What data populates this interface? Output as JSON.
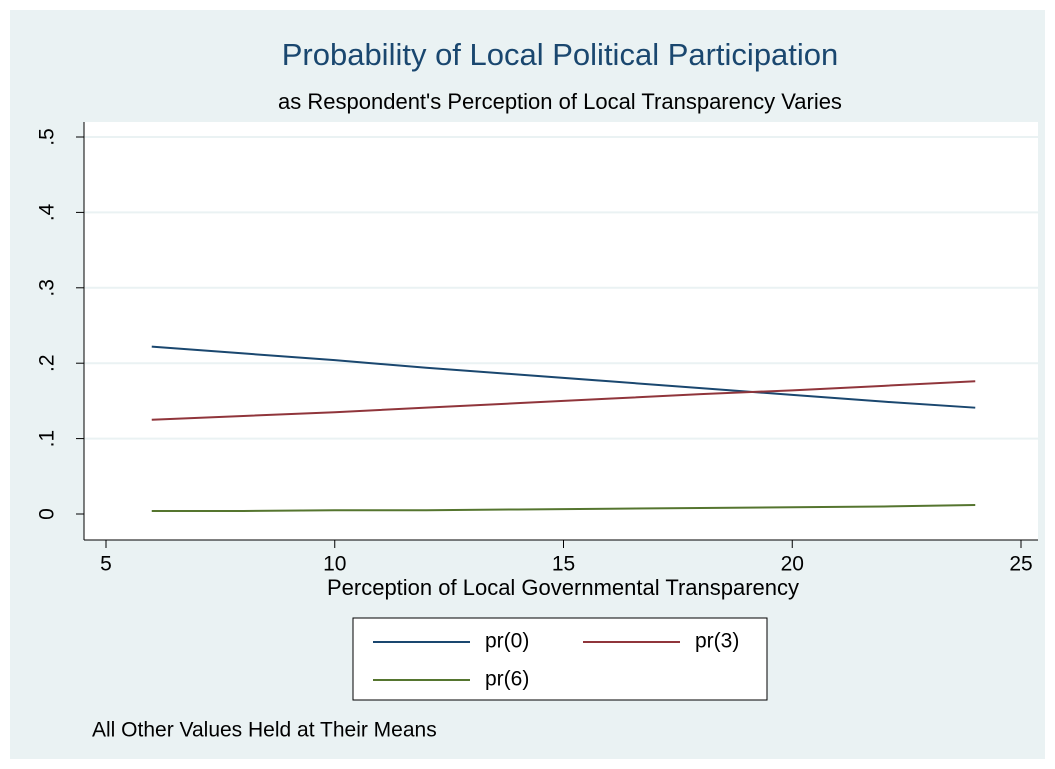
{
  "chart_data": {
    "type": "line",
    "title": "Probability of Local Political Participation",
    "subtitle": "as Respondent's Perception of Local Transparency Varies",
    "xlabel": "Perception of Local Governmental Transparency",
    "note": "All Other Values Held at Their Means",
    "x": [
      6,
      8,
      10,
      12,
      14,
      16,
      18,
      20,
      22,
      24
    ],
    "series": [
      {
        "name": "pr(0)",
        "color": "#1a476f",
        "values": [
          0.222,
          0.213,
          0.204,
          0.194,
          0.185,
          0.176,
          0.167,
          0.158,
          0.149,
          0.141
        ]
      },
      {
        "name": "pr(3)",
        "color": "#90353b",
        "values": [
          0.125,
          0.13,
          0.135,
          0.141,
          0.147,
          0.153,
          0.159,
          0.164,
          0.17,
          0.176
        ]
      },
      {
        "name": "pr(6)",
        "color": "#55752f",
        "values": [
          0.004,
          0.004,
          0.005,
          0.005,
          0.006,
          0.007,
          0.008,
          0.009,
          0.01,
          0.012
        ]
      }
    ],
    "xlim": [
      5,
      25
    ],
    "xticks": [
      5,
      10,
      15,
      20,
      25
    ],
    "ylim": [
      0,
      0.5
    ],
    "yticks": [
      0,
      {
        "value": 0.1,
        "label": ".1"
      },
      {
        "value": 0.2,
        "label": ".2"
      },
      {
        "value": 0.3,
        "label": ".3"
      },
      {
        "value": 0.4,
        "label": ".4"
      },
      {
        "value": 0.5,
        "label": ".5"
      }
    ],
    "grid": true
  }
}
